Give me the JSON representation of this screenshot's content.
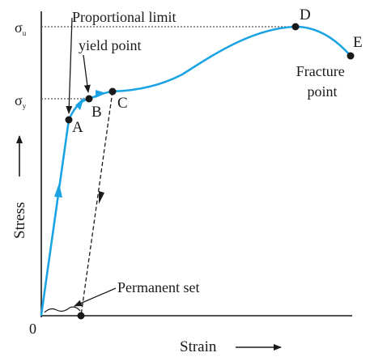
{
  "axes": {
    "origin": "0",
    "y_label": "Stress",
    "x_label": "Strain",
    "sigma_u": {
      "base": "σ",
      "sub": "u"
    },
    "sigma_y": {
      "base": "σ",
      "sub": "y"
    }
  },
  "points": {
    "a": "A",
    "b": "B",
    "c": "C",
    "d": "D",
    "e": "E"
  },
  "callouts": {
    "proportional_limit": "Proportional limit",
    "yield_point": "yield point",
    "fracture_line1": "Fracture",
    "fracture_line2": "point",
    "permanent_set": "Permanent set"
  },
  "colors": {
    "curve": "#1ba3e3",
    "ink": "#1a1a1a",
    "dotted": "#555555"
  }
}
